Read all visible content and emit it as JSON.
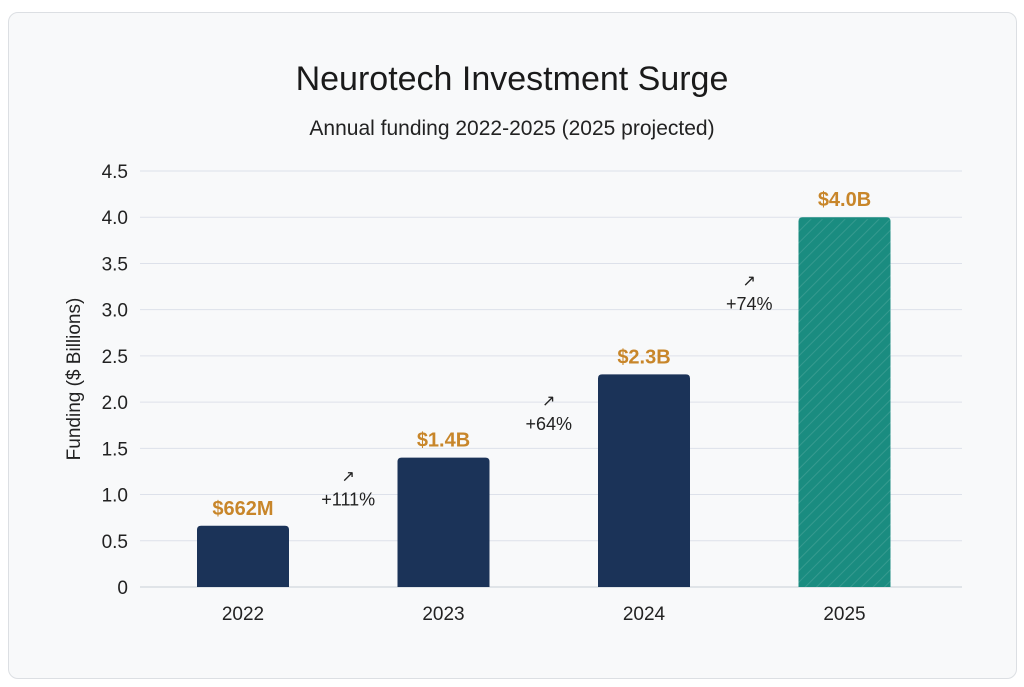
{
  "chart_data": {
    "type": "bar",
    "title": "Neurotech Investment Surge",
    "subtitle": "Annual funding 2022-2025 (2025 projected)",
    "xlabel": "",
    "ylabel": "Funding ($ Billions)",
    "ylim": [
      0,
      4.5
    ],
    "yticks": [
      "0",
      "0.5",
      "1.0",
      "1.5",
      "2.0",
      "2.5",
      "3.0",
      "3.5",
      "4.0",
      "4.5"
    ],
    "grid": true,
    "categories": [
      "2022",
      "2023",
      "2024",
      "2025"
    ],
    "values": [
      0.662,
      1.4,
      2.3,
      4.0
    ],
    "data_labels": [
      "$662M",
      "$1.4B",
      "$2.3B",
      "$4.0B"
    ],
    "projected": [
      false,
      false,
      false,
      true
    ],
    "growth_annotations": [
      {
        "between": [
          "2022",
          "2023"
        ],
        "label": "+111%",
        "icon": "arrow-up-right-icon"
      },
      {
        "between": [
          "2023",
          "2024"
        ],
        "label": "+64%",
        "icon": "arrow-up-right-icon"
      },
      {
        "between": [
          "2024",
          "2025"
        ],
        "label": "+74%",
        "icon": "arrow-up-right-icon"
      }
    ],
    "colors": {
      "actual": "#1b3358",
      "projected": "#1a8c80",
      "data_label": "#c8862a",
      "grid": "#dde1ea"
    }
  }
}
